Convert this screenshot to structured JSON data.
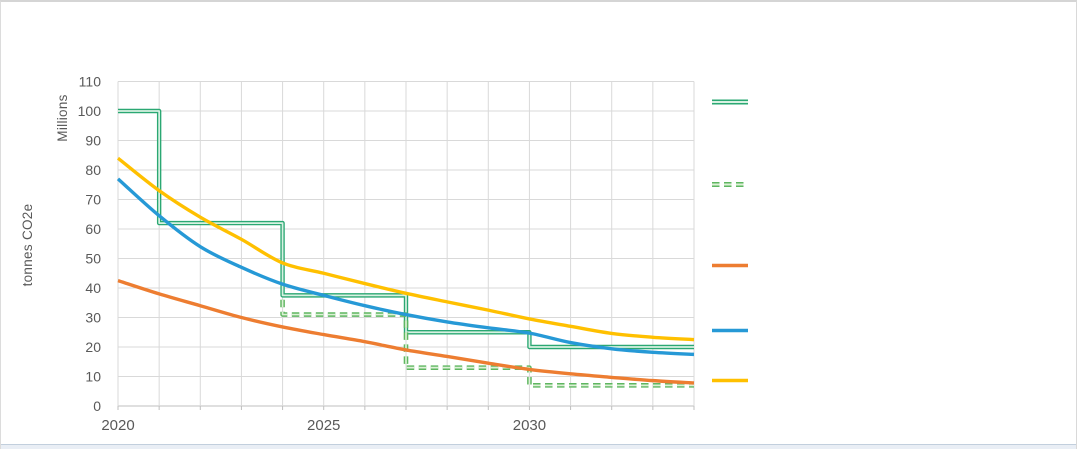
{
  "window": {
    "background": "#ffffff",
    "border_top_color": "#d5d5d5",
    "border_side_color": "#d9d9d9",
    "border_bottom_color": "#c2cfdd"
  },
  "chart_data": {
    "type": "line",
    "title": "",
    "ylabel": "tonnes CO2e",
    "y_display_units": "Millions",
    "ylim": [
      0,
      110
    ],
    "y_tick_step": 10,
    "y_ticks": [
      0,
      10,
      20,
      30,
      40,
      50,
      60,
      70,
      80,
      90,
      100,
      110
    ],
    "x_range": [
      2020,
      2034
    ],
    "x_ticks": [
      2020,
      2025,
      2030
    ],
    "x": [
      2020,
      2021,
      2022,
      2023,
      2024,
      2025,
      2026,
      2027,
      2028,
      2029,
      2030,
      2031,
      2032,
      2033,
      2034
    ],
    "grid": true,
    "grid_color": "#D9D9D9",
    "axis_line_color": "#BFBFBF",
    "tick_label_color": "#595959",
    "series": [
      {
        "name": "green-step-solid",
        "type": "step",
        "smooth": false,
        "color": "#2BA873",
        "inner_color": "#D8F1E2",
        "stroke_width": 4.4,
        "dash": "",
        "points": [
          [
            2020,
            100
          ],
          [
            2021,
            100
          ],
          [
            2021,
            62
          ],
          [
            2024,
            62
          ],
          [
            2024,
            37.5
          ],
          [
            2027,
            37.5
          ],
          [
            2027,
            25
          ],
          [
            2030,
            25
          ],
          [
            2030,
            20
          ],
          [
            2034,
            20
          ]
        ]
      },
      {
        "name": "green-step-dashed",
        "type": "step",
        "smooth": false,
        "color": "#5FB661",
        "inner_color": "#DCF1D6",
        "stroke_width": 4.6,
        "dash": "7.5 4.5",
        "points": [
          [
            2024,
            36
          ],
          [
            2024,
            31
          ],
          [
            2027,
            31
          ],
          [
            2027,
            13
          ],
          [
            2030,
            13
          ],
          [
            2030,
            7
          ],
          [
            2034,
            7
          ]
        ]
      },
      {
        "name": "orange-line",
        "type": "line",
        "smooth": true,
        "color": "#ED7D31",
        "inner_color": "",
        "stroke_width": 3.4,
        "dash": "",
        "values": [
          42.5,
          38,
          34,
          30,
          26.8,
          24.2,
          21.8,
          19,
          16.8,
          14.5,
          12.4,
          10.9,
          9.7,
          8.6,
          7.8
        ]
      },
      {
        "name": "blue-line",
        "type": "line",
        "smooth": true,
        "color": "#2699D6",
        "inner_color": "",
        "stroke_width": 3.4,
        "dash": "",
        "values": [
          77,
          64.5,
          54,
          47,
          41.3,
          37.5,
          34,
          31,
          28.5,
          26.5,
          24.7,
          21.5,
          19.4,
          18.2,
          17.5
        ]
      },
      {
        "name": "yellow-line",
        "type": "line",
        "smooth": true,
        "color": "#FFC000",
        "inner_color": "",
        "stroke_width": 3.4,
        "dash": "",
        "values": [
          84,
          73,
          64,
          56.5,
          48.5,
          45,
          41.5,
          38.2,
          35.3,
          32.5,
          29.5,
          27,
          24.6,
          23.3,
          22.5
        ]
      }
    ],
    "legend": {
      "position": "right",
      "labels_visible": false,
      "items": [
        "green-step-solid",
        "green-step-dashed",
        "orange-line",
        "blue-line",
        "yellow-line"
      ]
    }
  }
}
